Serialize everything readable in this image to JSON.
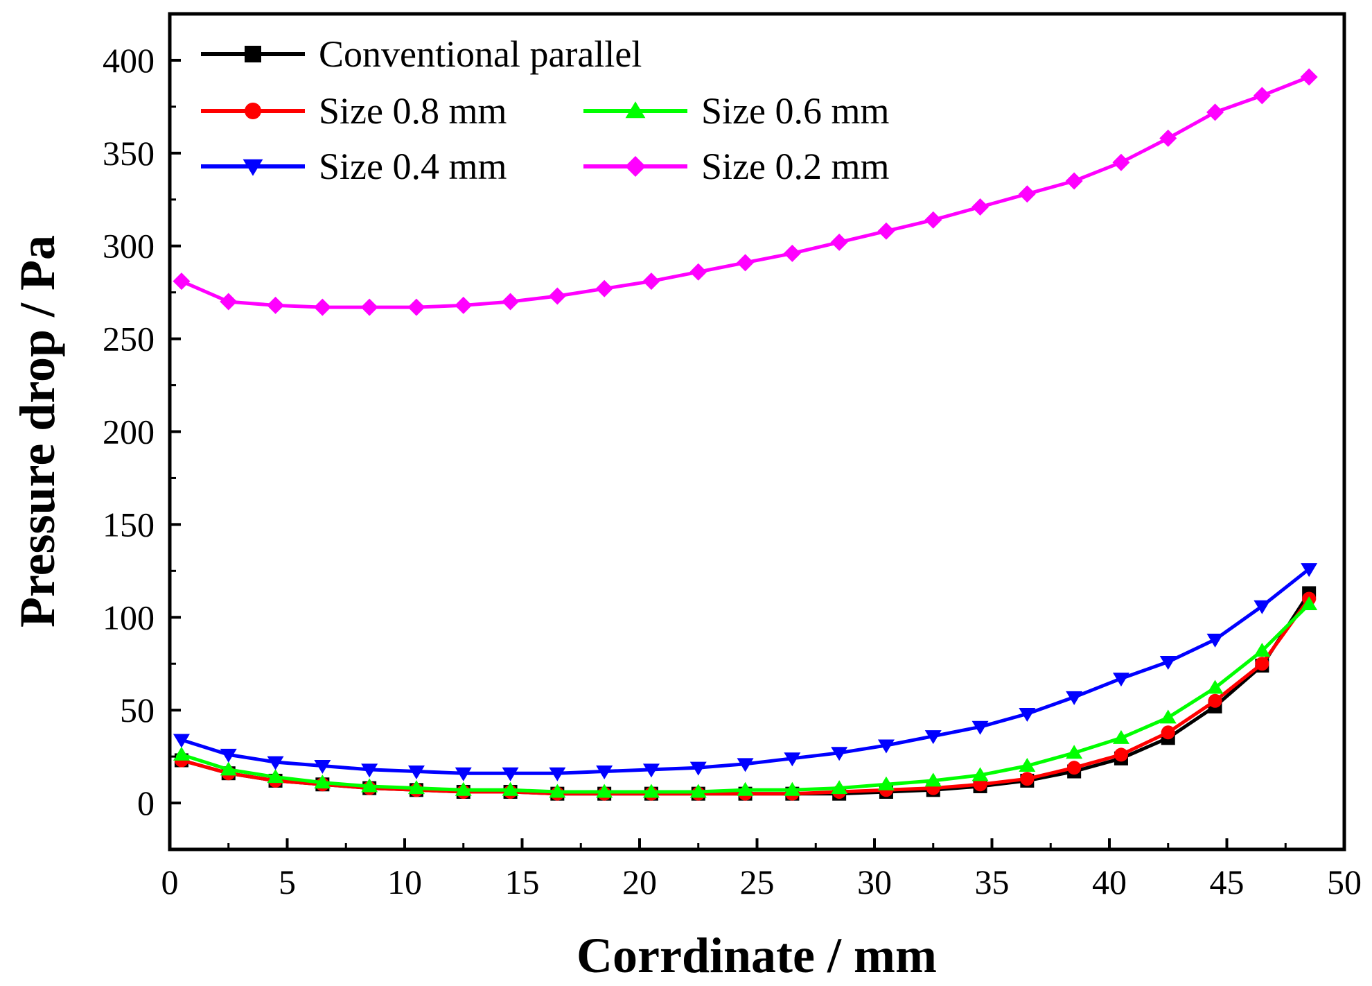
{
  "chart_data": {
    "type": "line",
    "title": "",
    "xlabel": "Corrdinate / mm",
    "ylabel": "Pressure drop / Pa",
    "xlim": [
      0,
      50
    ],
    "ylim": [
      -25,
      425
    ],
    "xticks": [
      0,
      5,
      10,
      15,
      20,
      25,
      30,
      35,
      40,
      45,
      50
    ],
    "yticks": [
      0,
      50,
      100,
      150,
      200,
      250,
      300,
      350,
      400
    ],
    "x": [
      0.5,
      2.5,
      4.5,
      6.5,
      8.5,
      10.5,
      12.5,
      14.5,
      16.5,
      18.5,
      20.5,
      22.5,
      24.5,
      26.5,
      28.5,
      30.5,
      32.5,
      34.5,
      36.5,
      38.5,
      40.5,
      42.5,
      44.5,
      46.5,
      48.5
    ],
    "legend_position": "top-left",
    "series": [
      {
        "name": "Conventional parallel",
        "color": "#000000",
        "marker": "square",
        "values": [
          23,
          16,
          12,
          10,
          8,
          7,
          6,
          6,
          5,
          5,
          5,
          5,
          5,
          5,
          5,
          6,
          7,
          9,
          12,
          17,
          24,
          35,
          52,
          74,
          113
        ]
      },
      {
        "name": "Size 0.8 mm",
        "color": "#ff0000",
        "marker": "circle",
        "values": [
          23,
          16,
          12,
          10,
          8,
          7,
          6,
          6,
          5,
          5,
          5,
          5,
          5,
          5,
          6,
          7,
          8,
          10,
          13,
          19,
          26,
          38,
          55,
          75,
          110
        ]
      },
      {
        "name": "Size 0.6 mm",
        "color": "#00ff00",
        "marker": "triangle-up",
        "values": [
          26,
          18,
          14,
          11,
          9,
          8,
          7,
          7,
          6,
          6,
          6,
          6,
          7,
          7,
          8,
          10,
          12,
          15,
          20,
          27,
          35,
          46,
          62,
          82,
          107
        ]
      },
      {
        "name": "Size 0.4 mm",
        "color": "#0000ff",
        "marker": "triangle-down",
        "values": [
          34,
          26,
          22,
          20,
          18,
          17,
          16,
          16,
          16,
          17,
          18,
          19,
          21,
          24,
          27,
          31,
          36,
          41,
          48,
          57,
          67,
          76,
          88,
          106,
          126
        ]
      },
      {
        "name": "Size 0.2 mm",
        "color": "#ff00ff",
        "marker": "diamond",
        "values": [
          281,
          270,
          268,
          267,
          267,
          267,
          268,
          270,
          273,
          277,
          281,
          286,
          291,
          296,
          302,
          308,
          314,
          321,
          328,
          335,
          345,
          358,
          372,
          381,
          391
        ]
      }
    ]
  }
}
